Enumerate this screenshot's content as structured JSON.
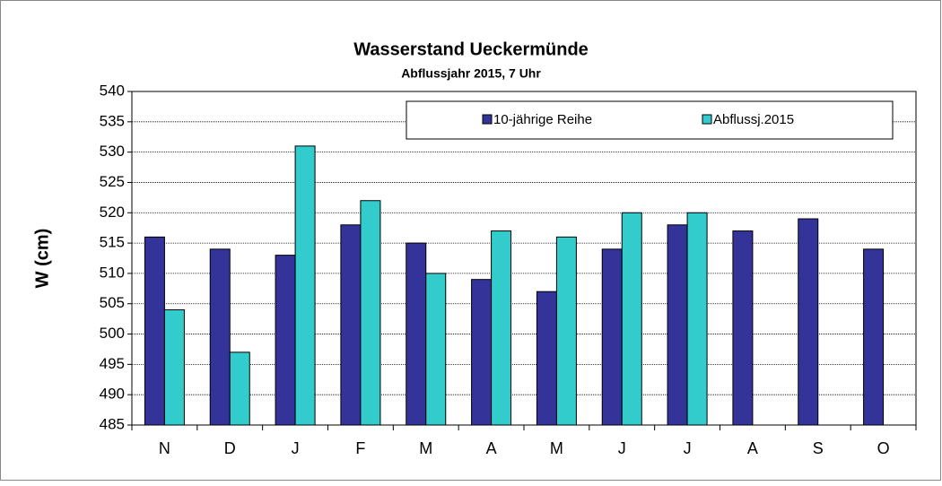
{
  "chart_data": {
    "type": "bar",
    "title": "Wasserstand Ueckermünde",
    "subtitle": "Abflussjahr 2015, 7 Uhr",
    "y_label": "W (cm)",
    "categories": [
      "N",
      "D",
      "J",
      "F",
      "M",
      "A",
      "M",
      "J",
      "J",
      "A",
      "S",
      "O"
    ],
    "series": [
      {
        "name": "10-jährige Reihe",
        "color": "#333399",
        "values": [
          516,
          514,
          513,
          518,
          515,
          509,
          507,
          514,
          518,
          517,
          519,
          514
        ]
      },
      {
        "name": "Abflussj.2015",
        "color": "#33cccc",
        "values": [
          504,
          497,
          531,
          522,
          510,
          517,
          516,
          520,
          520,
          null,
          null,
          null
        ]
      }
    ],
    "ylim": [
      485,
      540
    ],
    "yticks": [
      485,
      490,
      495,
      500,
      505,
      510,
      515,
      520,
      525,
      530,
      535,
      540
    ],
    "grid": true,
    "legend": "top-right"
  }
}
